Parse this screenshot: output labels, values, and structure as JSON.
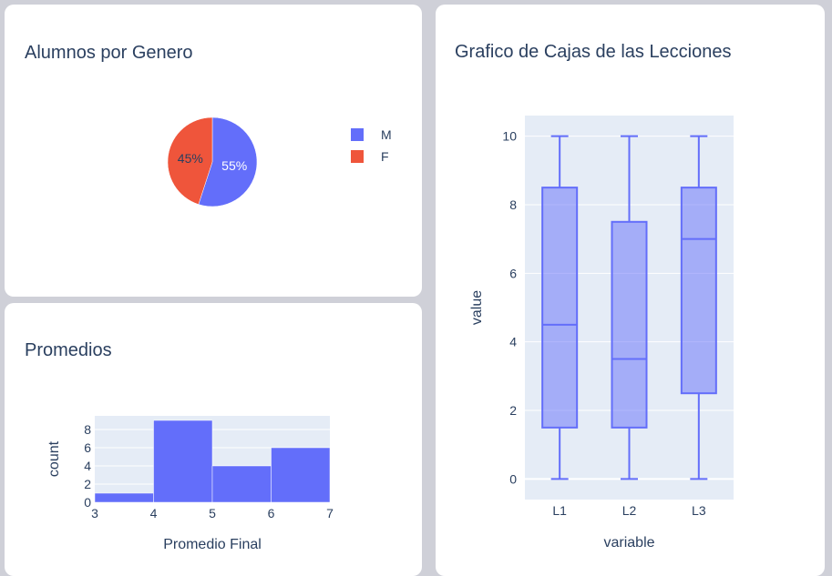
{
  "colors": {
    "series": "#636efa",
    "series_fill": "rgba(99,110,250,0.5)",
    "f_slice": "#ef553b",
    "plot_bg": "#e5ecf6",
    "text": "#2a3f5f"
  },
  "pie": {
    "title": "Alumnos por Genero",
    "legend": [
      "M",
      "F"
    ]
  },
  "histogram": {
    "title": "Promedios"
  },
  "boxplot": {
    "title": "Grafico de Cajas de las Lecciones"
  },
  "chart_data": [
    {
      "type": "pie",
      "title": "Alumnos por Genero",
      "labels": [
        "M",
        "F"
      ],
      "values": [
        55,
        45
      ],
      "text_labels": [
        "55%",
        "45%"
      ],
      "colors": [
        "#636efa",
        "#ef553b"
      ],
      "legend": "right"
    },
    {
      "type": "bar",
      "subtype": "histogram",
      "title": "Promedios",
      "xlabel": "Promedio Final",
      "ylabel": "count",
      "bins": [
        [
          3,
          4
        ],
        [
          4,
          5
        ],
        [
          5,
          6
        ],
        [
          6,
          7
        ]
      ],
      "values": [
        1,
        9,
        4,
        6
      ],
      "xlim": [
        3,
        7
      ],
      "ylim": [
        0,
        9.5
      ],
      "x_ticks": [
        "3",
        "4",
        "5",
        "6",
        "7"
      ],
      "y_ticks": [
        "0",
        "2",
        "4",
        "6",
        "8"
      ],
      "color": "#636efa",
      "grid": true
    },
    {
      "type": "box",
      "title": "Grafico de Cajas de las Lecciones",
      "xlabel": "variable",
      "ylabel": "value",
      "categories": [
        "L1",
        "L2",
        "L3"
      ],
      "boxes": [
        {
          "category": "L1",
          "min": 0,
          "q1": 1.5,
          "median": 4.5,
          "q3": 8.5,
          "max": 10
        },
        {
          "category": "L2",
          "min": 0,
          "q1": 1.5,
          "median": 3.5,
          "q3": 7.5,
          "max": 10
        },
        {
          "category": "L3",
          "min": 0,
          "q1": 2.5,
          "median": 7,
          "q3": 8.5,
          "max": 10
        }
      ],
      "ylim": [
        -0.6,
        10.6
      ],
      "y_ticks": [
        "0",
        "2",
        "4",
        "6",
        "8",
        "10"
      ],
      "color": "#636efa",
      "grid": true
    }
  ]
}
